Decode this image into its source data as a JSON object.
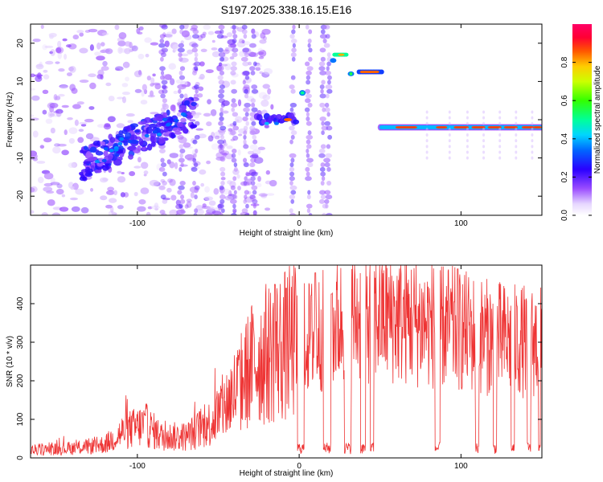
{
  "chart_data": [
    {
      "type": "heatmap",
      "title": "S197.2025.338.16.15.E16",
      "xlabel": "Height of straight line (km)",
      "ylabel": "Frequency (Hz)",
      "xlim": [
        -166,
        150
      ],
      "ylim": [
        -25,
        25
      ],
      "xticks": [
        "-100",
        "0",
        "100"
      ],
      "xtick_values": [
        -100,
        0,
        100
      ],
      "yticks": [
        "20",
        "10",
        "0",
        "-10",
        "-20"
      ],
      "ytick_values": [
        20,
        10,
        0,
        -10,
        -20
      ],
      "colorbar": {
        "label": "Normalized spectral amplitude",
        "ticks": [
          "0.0",
          "0.2",
          "0.4",
          "0.6",
          "0.8"
        ],
        "tick_values": [
          0.0,
          0.2,
          0.4,
          0.6,
          0.8
        ],
        "range": [
          0,
          1
        ]
      },
      "features": [
        {
          "name": "near-zero-line",
          "x": [
            -25,
            -1
          ],
          "freq": 0
        },
        {
          "name": "rising-band",
          "x": [
            -130,
            -70
          ],
          "freq": [
            -12,
            2
          ]
        },
        {
          "name": "upper-lines",
          "x": [
            2,
            49
          ],
          "freq": [
            7,
            17,
            12.5
          ]
        },
        {
          "name": "steady-line",
          "x": [
            50,
            150
          ],
          "freq": -2
        }
      ]
    },
    {
      "type": "line",
      "xlabel": "Height of straight line (km)",
      "ylabel": "SNR (10 * v/v)",
      "xlim": [
        -166,
        150
      ],
      "ylim": [
        0,
        500
      ],
      "xticks": [
        "-100",
        "0",
        "100"
      ],
      "xtick_values": [
        -100,
        0,
        100
      ],
      "yticks": [
        "0",
        "100",
        "200",
        "300",
        "400"
      ],
      "ytick_values": [
        0,
        100,
        200,
        300,
        400
      ],
      "series": [
        {
          "name": "SNR",
          "color": "#ee3333",
          "profile": [
            [
              -166,
              20
            ],
            [
              -140,
              25
            ],
            [
              -120,
              35
            ],
            [
              -108,
              70
            ],
            [
              -95,
              85
            ],
            [
              -85,
              55
            ],
            [
              -70,
              55
            ],
            [
              -55,
              90
            ],
            [
              -45,
              140
            ],
            [
              -35,
              200
            ],
            [
              -28,
              250
            ],
            [
              -20,
              270
            ],
            [
              -10,
              290
            ],
            [
              -2,
              300
            ],
            [
              10,
              320
            ],
            [
              20,
              340
            ],
            [
              30,
              360
            ],
            [
              45,
              370
            ],
            [
              60,
              365
            ],
            [
              75,
              350
            ],
            [
              90,
              340
            ],
            [
              100,
              330
            ],
            [
              115,
              315
            ],
            [
              130,
              305
            ],
            [
              150,
              300
            ]
          ],
          "spikes": [
            [
              -15,
              450
            ],
            [
              -8,
              440
            ],
            [
              10,
              480
            ],
            [
              20,
              425
            ],
            [
              98,
              490
            ]
          ],
          "dropouts": [
            [
              -1,
              3
            ],
            [
              15,
              20
            ],
            [
              28,
              32
            ],
            [
              38,
              41
            ],
            [
              44,
              46
            ],
            [
              84,
              87
            ],
            [
              109,
              111
            ],
            [
              120,
              122
            ],
            [
              131,
              133
            ],
            [
              141,
              143
            ],
            [
              148,
              149
            ]
          ]
        }
      ]
    }
  ]
}
